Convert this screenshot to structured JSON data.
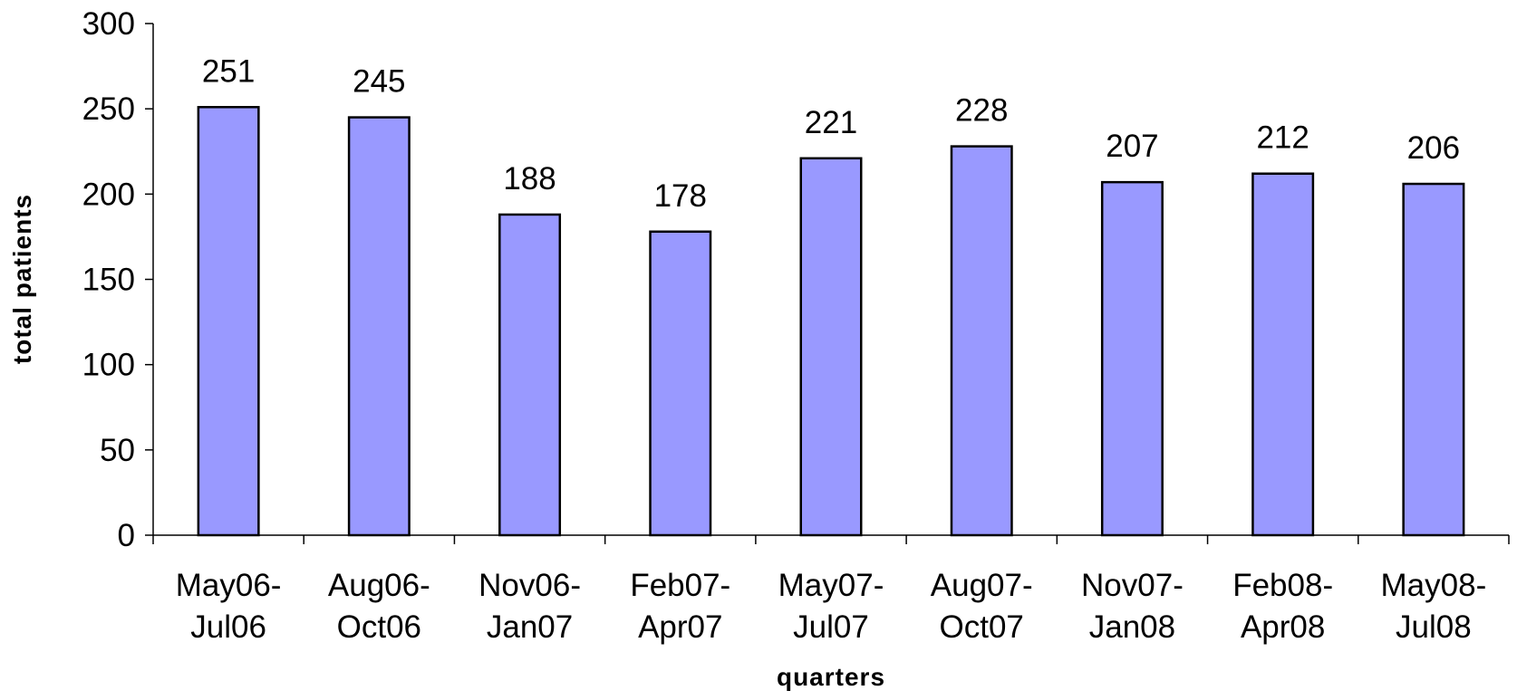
{
  "chart_data": {
    "type": "bar",
    "x_label": "quarters",
    "y_label": "total patients",
    "categories": [
      "May06-Jul06",
      "Aug06-Oct06",
      "Nov06-Jan07",
      "Feb07-Apr07",
      "May07-Jul07",
      "Aug07-Oct07",
      "Nov07-Jan08",
      "Feb08-Apr08",
      "May08-Jul08"
    ],
    "values": [
      251,
      245,
      188,
      178,
      221,
      228,
      207,
      212,
      206
    ],
    "color": "#9999ff",
    "ylim": [
      0,
      300
    ],
    "yticks": [
      0,
      50,
      100,
      150,
      200,
      250,
      300
    ],
    "grid": false
  }
}
